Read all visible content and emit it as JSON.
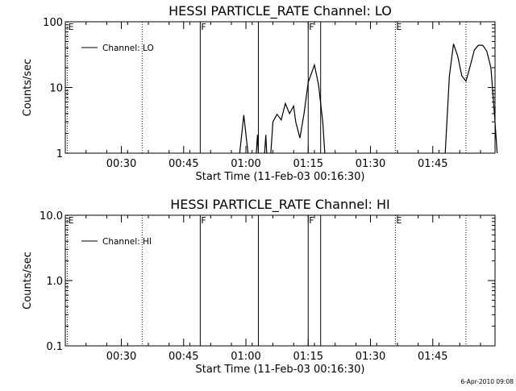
{
  "chart_data": [
    {
      "type": "line",
      "title": "HESSI PARTICLE_RATE Channel: LO",
      "xlabel": "Start Time (11-Feb-03 00:16:30)",
      "ylabel": "Counts/sec",
      "y_scale": "log",
      "ylim": [
        1,
        100
      ],
      "y_ticks": [
        "1",
        "10",
        "100"
      ],
      "xlim": [
        "00:16:30",
        "02:00:00"
      ],
      "x_ticks": [
        "00:30",
        "00:45",
        "01:00",
        "01:15",
        "01:30",
        "01:45"
      ],
      "grid": false,
      "legend": {
        "placement": "top-left",
        "entries": [
          "Channel: LO"
        ]
      },
      "series": [
        {
          "name": "Channel: LO",
          "segments": [
            [
              [
                42.0,
                1.0
              ],
              [
                43.0,
                3.8
              ],
              [
                44.0,
                1.0
              ]
            ],
            [
              [
                46.0,
                1.0
              ],
              [
                46.3,
                1.9
              ],
              [
                46.5,
                1.0
              ]
            ],
            [
              [
                48.0,
                1.0
              ],
              [
                48.3,
                1.9
              ],
              [
                48.5,
                1.0
              ]
            ],
            [
              [
                49.5,
                1.0
              ],
              [
                50.0,
                3.0
              ],
              [
                51.0,
                3.9
              ],
              [
                52.0,
                3.2
              ],
              [
                53.0,
                5.7
              ],
              [
                54.0,
                4.0
              ],
              [
                55.0,
                5.2
              ],
              [
                55.5,
                3.0
              ],
              [
                56.5,
                1.7
              ],
              [
                57.5,
                4.0
              ],
              [
                58.5,
                12.0
              ],
              [
                60.0,
                22.0
              ],
              [
                61.0,
                11.0
              ],
              [
                62.0,
                3.0
              ],
              [
                62.5,
                1.0
              ]
            ],
            [
              [
                91.5,
                1.0
              ],
              [
                92.5,
                15.0
              ],
              [
                93.5,
                46.0
              ],
              [
                94.5,
                30.0
              ],
              [
                95.5,
                15.0
              ],
              [
                96.5,
                12.5
              ],
              [
                97.5,
                21.0
              ],
              [
                98.5,
                37.0
              ],
              [
                99.5,
                44.0
              ],
              [
                100.5,
                44.0
              ],
              [
                101.5,
                36.0
              ],
              [
                102.5,
                20.0
              ],
              [
                103.5,
                3.0
              ],
              [
                104.0,
                1.0
              ]
            ]
          ]
        }
      ],
      "annotations": [
        "E",
        "F",
        "F",
        "E"
      ]
    },
    {
      "type": "line",
      "title": "HESSI PARTICLE_RATE Channel: HI",
      "xlabel": "Start Time (11-Feb-03 00:16:30)",
      "ylabel": "Counts/sec",
      "y_scale": "log",
      "ylim": [
        0.1,
        10
      ],
      "y_ticks": [
        "0.1",
        "1.0",
        "10.0"
      ],
      "xlim": [
        "00:16:30",
        "02:00:00"
      ],
      "x_ticks": [
        "00:30",
        "00:45",
        "01:00",
        "01:15",
        "01:30",
        "01:45"
      ],
      "grid": false,
      "legend": {
        "placement": "top-left",
        "entries": [
          "Channel: HI"
        ]
      },
      "series": [
        {
          "name": "Channel: HI",
          "segments": []
        }
      ],
      "annotations": [
        "E",
        "F",
        "F",
        "E"
      ]
    }
  ],
  "markers": [
    {
      "time": "00:17",
      "style": "dotted",
      "label": "E"
    },
    {
      "time": "00:35",
      "style": "dotted",
      "label": ""
    },
    {
      "time": "00:49",
      "style": "solid",
      "label": "F"
    },
    {
      "time": "01:03",
      "style": "solid",
      "label": ""
    },
    {
      "time": "01:15",
      "style": "solid",
      "label": "F"
    },
    {
      "time": "01:18",
      "style": "solid",
      "label": ""
    },
    {
      "time": "01:36",
      "style": "dotted",
      "label": "E"
    },
    {
      "time": "01:53",
      "style": "dotted",
      "label": ""
    }
  ],
  "timestamp": "6-Apr-2010 09:08",
  "colors": {
    "background": "#ffffff",
    "foreground": "#000000"
  }
}
